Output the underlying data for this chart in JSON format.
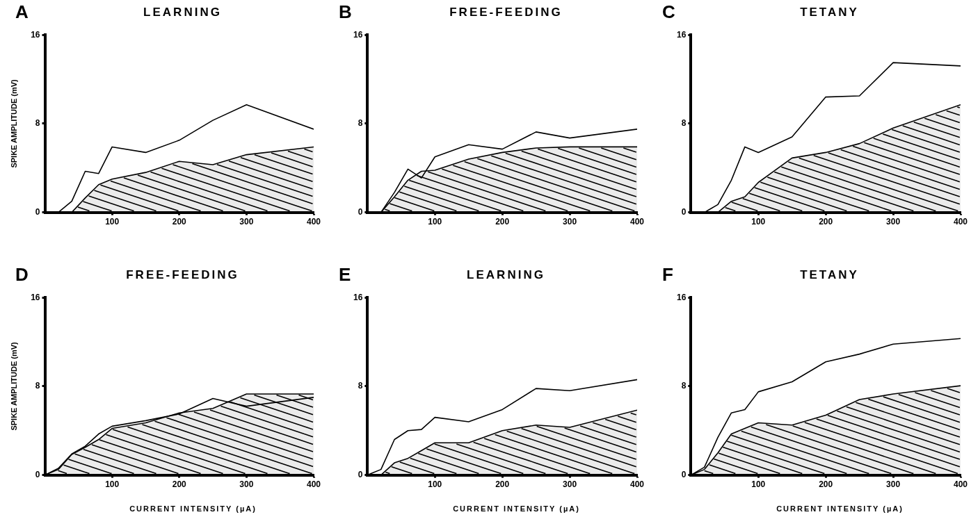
{
  "chart_data": [
    {
      "type": "line",
      "title": "LEARNING",
      "annotations": [
        "A"
      ],
      "ylabel": "SPIKE AMPLITUDE (mV)",
      "x": [
        0,
        20,
        40,
        60,
        80,
        100,
        150,
        200,
        250,
        300,
        400
      ],
      "xlim": [
        0,
        400
      ],
      "ylim": [
        0,
        16
      ],
      "xticks": [
        100,
        200,
        300,
        400
      ],
      "yticks": [
        0,
        8,
        16
      ],
      "tick_labels": "xy",
      "grid": false,
      "legend": false,
      "marker": "none",
      "line_style": "solid",
      "series": [
        {
          "type": "area",
          "color": "#000000",
          "values": [
            0,
            0,
            0,
            1.3,
            2.5,
            3.0,
            3.6,
            4.6,
            4.3,
            5.2,
            5.9
          ]
        },
        {
          "type": "line",
          "color": "#000000",
          "values": [
            0,
            0,
            1.0,
            3.7,
            3.5,
            5.9,
            5.4,
            6.5,
            8.3,
            9.7,
            7.5
          ]
        }
      ]
    },
    {
      "type": "line",
      "title": "FREE-FEEDING",
      "annotations": [
        "B"
      ],
      "x": [
        0,
        20,
        40,
        60,
        80,
        100,
        150,
        200,
        250,
        300,
        400
      ],
      "xlim": [
        0,
        400
      ],
      "ylim": [
        0,
        16
      ],
      "xticks": [
        100,
        200,
        300,
        400
      ],
      "yticks": [
        0,
        8,
        16
      ],
      "grid": false,
      "legend": false,
      "marker": "none",
      "line_style": "solid",
      "series": [
        {
          "type": "area",
          "color": "#000000",
          "values": [
            0,
            0,
            1.4,
            2.9,
            3.7,
            3.8,
            4.8,
            5.4,
            5.8,
            5.9,
            5.9
          ]
        },
        {
          "type": "line",
          "color": "#000000",
          "values": [
            0,
            0,
            1.8,
            3.9,
            3.1,
            5.0,
            6.1,
            5.7,
            7.25,
            6.7,
            7.5
          ]
        }
      ]
    },
    {
      "type": "line",
      "title": "TETANY",
      "annotations": [
        "C"
      ],
      "x": [
        0,
        20,
        40,
        60,
        80,
        100,
        150,
        200,
        250,
        300,
        400
      ],
      "xlim": [
        0,
        400
      ],
      "ylim": [
        0,
        16
      ],
      "xticks": [
        100,
        200,
        300,
        400
      ],
      "yticks": [
        0,
        8,
        16
      ],
      "grid": false,
      "legend": false,
      "marker": "none",
      "line_style": "solid",
      "series": [
        {
          "type": "area",
          "color": "#000000",
          "values": [
            0,
            0,
            0,
            1.0,
            1.4,
            2.7,
            4.9,
            5.4,
            6.2,
            7.6,
            9.7
          ]
        },
        {
          "type": "line",
          "color": "#000000",
          "values": [
            0,
            0,
            0.7,
            2.9,
            5.9,
            5.4,
            6.8,
            10.4,
            10.5,
            13.5,
            13.2
          ]
        }
      ]
    },
    {
      "type": "line",
      "title": "FREE-FEEDING",
      "annotations": [
        "D"
      ],
      "ylabel": "SPIKE AMPLITUDE (mV)",
      "xlabel": "CURRENT INTENSITY (µA)",
      "x": [
        0,
        20,
        40,
        60,
        80,
        100,
        150,
        200,
        250,
        300,
        400
      ],
      "xlim": [
        0,
        400
      ],
      "ylim": [
        0,
        16
      ],
      "xticks": [
        100,
        200,
        300,
        400
      ],
      "yticks": [
        0,
        8,
        16
      ],
      "grid": false,
      "legend": false,
      "marker": "none",
      "line_style": "solid",
      "series": [
        {
          "type": "area",
          "color": "#000000",
          "values": [
            0,
            0.5,
            1.85,
            2.5,
            3.2,
            4.2,
            4.7,
            5.6,
            6.0,
            7.3,
            7.3
          ]
        },
        {
          "type": "line",
          "color": "#000000",
          "values": [
            0,
            0.6,
            1.9,
            2.6,
            3.7,
            4.4,
            4.9,
            5.5,
            6.9,
            6.2,
            7.0
          ]
        }
      ]
    },
    {
      "type": "line",
      "title": "LEARNING",
      "annotations": [
        "E"
      ],
      "xlabel": "CURRENT INTENSITY (µA)",
      "x": [
        0,
        20,
        40,
        60,
        80,
        100,
        150,
        200,
        250,
        300,
        400
      ],
      "xlim": [
        0,
        400
      ],
      "ylim": [
        0,
        16
      ],
      "xticks": [
        100,
        200,
        300,
        400
      ],
      "yticks": [
        0,
        8,
        16
      ],
      "grid": false,
      "legend": false,
      "marker": "none",
      "line_style": "solid",
      "series": [
        {
          "type": "area",
          "color": "#000000",
          "values": [
            0,
            0,
            1.1,
            1.5,
            2.2,
            2.9,
            2.9,
            4.0,
            4.5,
            4.3,
            5.85
          ]
        },
        {
          "type": "line",
          "color": "#000000",
          "values": [
            0,
            0.5,
            3.2,
            4.0,
            4.1,
            5.2,
            4.8,
            5.9,
            7.8,
            7.6,
            8.6
          ]
        }
      ]
    },
    {
      "type": "line",
      "title": "TETANY",
      "annotations": [
        "F"
      ],
      "xlabel": "CURRENT INTENSITY (µA)",
      "x": [
        0,
        20,
        40,
        60,
        80,
        100,
        150,
        200,
        250,
        300,
        400
      ],
      "xlim": [
        0,
        400
      ],
      "ylim": [
        0,
        16
      ],
      "xticks": [
        100,
        200,
        300,
        400
      ],
      "yticks": [
        0,
        8,
        16
      ],
      "grid": false,
      "legend": false,
      "marker": "none",
      "line_style": "solid",
      "series": [
        {
          "type": "area",
          "color": "#000000",
          "values": [
            0,
            0.5,
            2.0,
            3.7,
            4.2,
            4.7,
            4.5,
            5.4,
            6.8,
            7.3,
            8.05
          ]
        },
        {
          "type": "line",
          "color": "#000000",
          "values": [
            0,
            0.7,
            3.4,
            5.6,
            5.9,
            7.5,
            8.4,
            10.2,
            10.9,
            11.8,
            12.3
          ]
        }
      ]
    }
  ]
}
